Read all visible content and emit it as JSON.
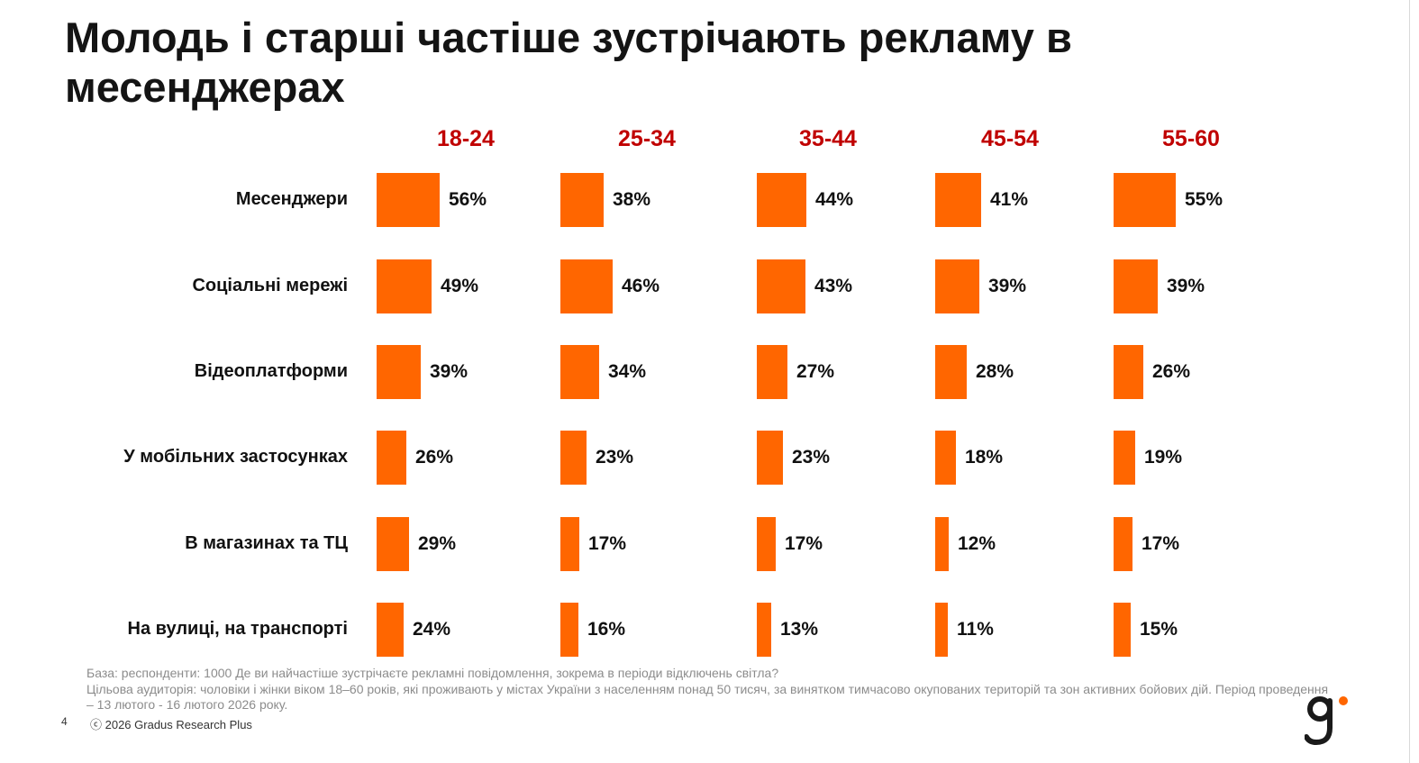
{
  "title": "Молодь і старші частіше зустрічають рекламу в месенджерах",
  "colors": {
    "bar": "#ff6600",
    "header": "#c00000"
  },
  "chart_data": {
    "type": "bar",
    "title": "Молодь і старші частіше зустрічають рекламу в месенджерах",
    "orientation": "horizontal-small-multiples",
    "categories": [
      "Месенджери",
      "Соціальні мережі",
      "Відеоплатформи",
      "У мобільних застосунках",
      "В магазинах та ТЦ",
      "На вулиці, на транспорті"
    ],
    "series": [
      {
        "name": "18-24",
        "values": [
          56,
          49,
          39,
          26,
          29,
          24
        ],
        "labels": [
          "56%",
          "49%",
          "39%",
          "26%",
          "29%",
          "24%"
        ]
      },
      {
        "name": "25-34",
        "values": [
          38,
          46,
          34,
          23,
          17,
          16
        ],
        "labels": [
          "38%",
          "46%",
          "34%",
          "23%",
          "17%",
          "16%"
        ]
      },
      {
        "name": "35-44",
        "values": [
          44,
          43,
          27,
          23,
          17,
          13
        ],
        "labels": [
          "44%",
          "43%",
          "27%",
          "23%",
          "17%",
          "13%"
        ]
      },
      {
        "name": "45-54",
        "values": [
          41,
          39,
          28,
          18,
          12,
          11
        ],
        "labels": [
          "41%",
          "39%",
          "28%",
          "18%",
          "12%",
          "11%"
        ]
      },
      {
        "name": "55-60",
        "values": [
          55,
          39,
          26,
          19,
          17,
          15
        ],
        "labels": [
          "55%",
          "39%",
          "26%",
          "19%",
          "17%",
          "15%"
        ]
      }
    ],
    "unit": "%"
  },
  "footnotes": {
    "base": "База: респонденти: 1000 Де ви найчастіше зустрічаєте рекламні повідомлення, зокрема в періоди відключень світла?",
    "audience": "Цільова аудиторія: чоловіки і жінки віком 18–60 років, які проживають у містах України з населенням понад 50 тисяч, за винятком тимчасово окупованих територій та зон активних бойових дій. Період проведення – 13 лютого - 16 лютого 2026 року."
  },
  "page_number": "4",
  "copyright": "ⓒ 2026 Gradus Research Plus",
  "logo": {
    "icon": "gradus-g-logo"
  }
}
